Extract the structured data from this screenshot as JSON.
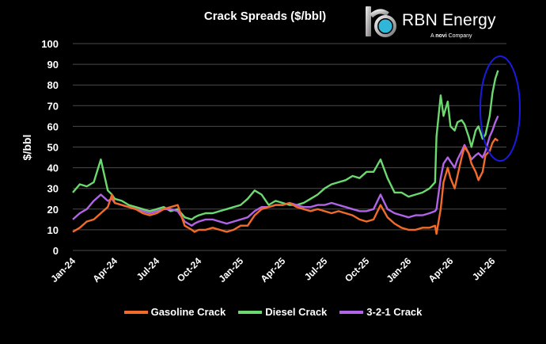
{
  "logo": {
    "brand": "RBN Energy",
    "tagline_prefix": "A",
    "tagline_brand": "novi",
    "tagline_suffix": "Company"
  },
  "chart_data": {
    "type": "line",
    "title": "Crack Spreads ($/bbl)",
    "ylabel": "$/bbl",
    "xlabel": "",
    "ylim": [
      0,
      100
    ],
    "yticks": [
      0,
      10,
      20,
      30,
      40,
      50,
      60,
      70,
      80,
      90,
      100
    ],
    "xticks": [
      "Jan-24",
      "Apr-24",
      "Jul-24",
      "Oct-24",
      "Jan-25",
      "Apr-25",
      "Jul-25",
      "Oct-25",
      "Jan-26",
      "Apr-26",
      "Jul-26"
    ],
    "x": [
      0,
      0.5,
      1,
      1.5,
      2,
      2.5,
      2.8,
      3,
      3.5,
      4,
      4.5,
      5,
      5.5,
      6,
      6.5,
      7,
      7.5,
      8,
      8.5,
      8.7,
      9,
      9.5,
      10,
      10.5,
      11,
      11.5,
      12,
      12.5,
      13,
      13.5,
      14,
      14.5,
      15,
      15.5,
      16,
      16.5,
      17,
      17.5,
      18,
      18.5,
      19,
      19.5,
      20,
      20.5,
      21,
      21.5,
      22,
      22.5,
      23,
      23.5,
      24,
      24.5,
      25,
      25.5,
      25.9,
      26,
      26.3,
      26.5,
      26.8,
      27,
      27.3,
      27.5,
      27.8,
      28,
      28.3,
      28.5,
      28.8,
      29,
      29.3,
      29.5,
      29.8,
      30,
      30.2,
      30.4
    ],
    "series": [
      {
        "name": "Gasoline Crack",
        "color": "#f26b2a",
        "values": [
          9,
          11,
          14,
          15,
          18,
          21,
          27,
          23,
          22,
          21,
          20,
          18,
          17,
          18,
          20,
          21,
          22,
          12,
          10,
          9,
          10,
          10,
          11,
          10,
          9,
          10,
          12,
          12,
          17,
          20,
          21,
          22,
          22,
          23,
          21,
          20,
          19,
          20,
          19,
          18,
          19,
          18,
          17,
          15,
          14,
          15,
          22,
          16,
          13,
          11,
          10,
          10,
          11,
          11,
          12,
          8,
          20,
          33,
          40,
          35,
          30,
          36,
          45,
          50,
          47,
          42,
          38,
          34,
          38,
          46,
          48,
          52,
          54,
          53
        ]
      },
      {
        "name": "Diesel Crack",
        "color": "#6cd970",
        "values": [
          28,
          32,
          31,
          33,
          44,
          29,
          27,
          25,
          24,
          22,
          21,
          20,
          19,
          20,
          21,
          19,
          20,
          16,
          15,
          16,
          17,
          18,
          18,
          19,
          20,
          21,
          22,
          25,
          29,
          27,
          22,
          24,
          23,
          22,
          22,
          23,
          25,
          27,
          30,
          32,
          33,
          34,
          36,
          35,
          38,
          38,
          44,
          35,
          28,
          28,
          26,
          27,
          28,
          30,
          33,
          55,
          75,
          65,
          72,
          60,
          58,
          62,
          63,
          61,
          55,
          50,
          58,
          60,
          54,
          56,
          65,
          76,
          83,
          87
        ]
      },
      {
        "name": "3-2-1 Crack",
        "color": "#b264e8",
        "values": [
          15,
          18,
          20,
          24,
          27,
          24,
          25,
          23,
          22,
          21,
          20,
          19,
          18,
          19,
          20,
          20,
          19,
          14,
          12,
          13,
          14,
          15,
          15,
          14,
          13,
          14,
          15,
          16,
          19,
          21,
          21,
          22,
          22,
          23,
          22,
          21,
          21,
          22,
          22,
          23,
          22,
          21,
          20,
          19,
          19,
          20,
          27,
          20,
          18,
          17,
          16,
          17,
          17,
          18,
          19,
          20,
          35,
          42,
          45,
          43,
          40,
          44,
          48,
          51,
          47,
          44,
          46,
          47,
          45,
          48,
          55,
          58,
          62,
          65
        ]
      }
    ],
    "annotation": {
      "shape": "ellipse",
      "color": "#1a1ae0"
    },
    "grid": "horizontal",
    "legend": "bottom"
  }
}
